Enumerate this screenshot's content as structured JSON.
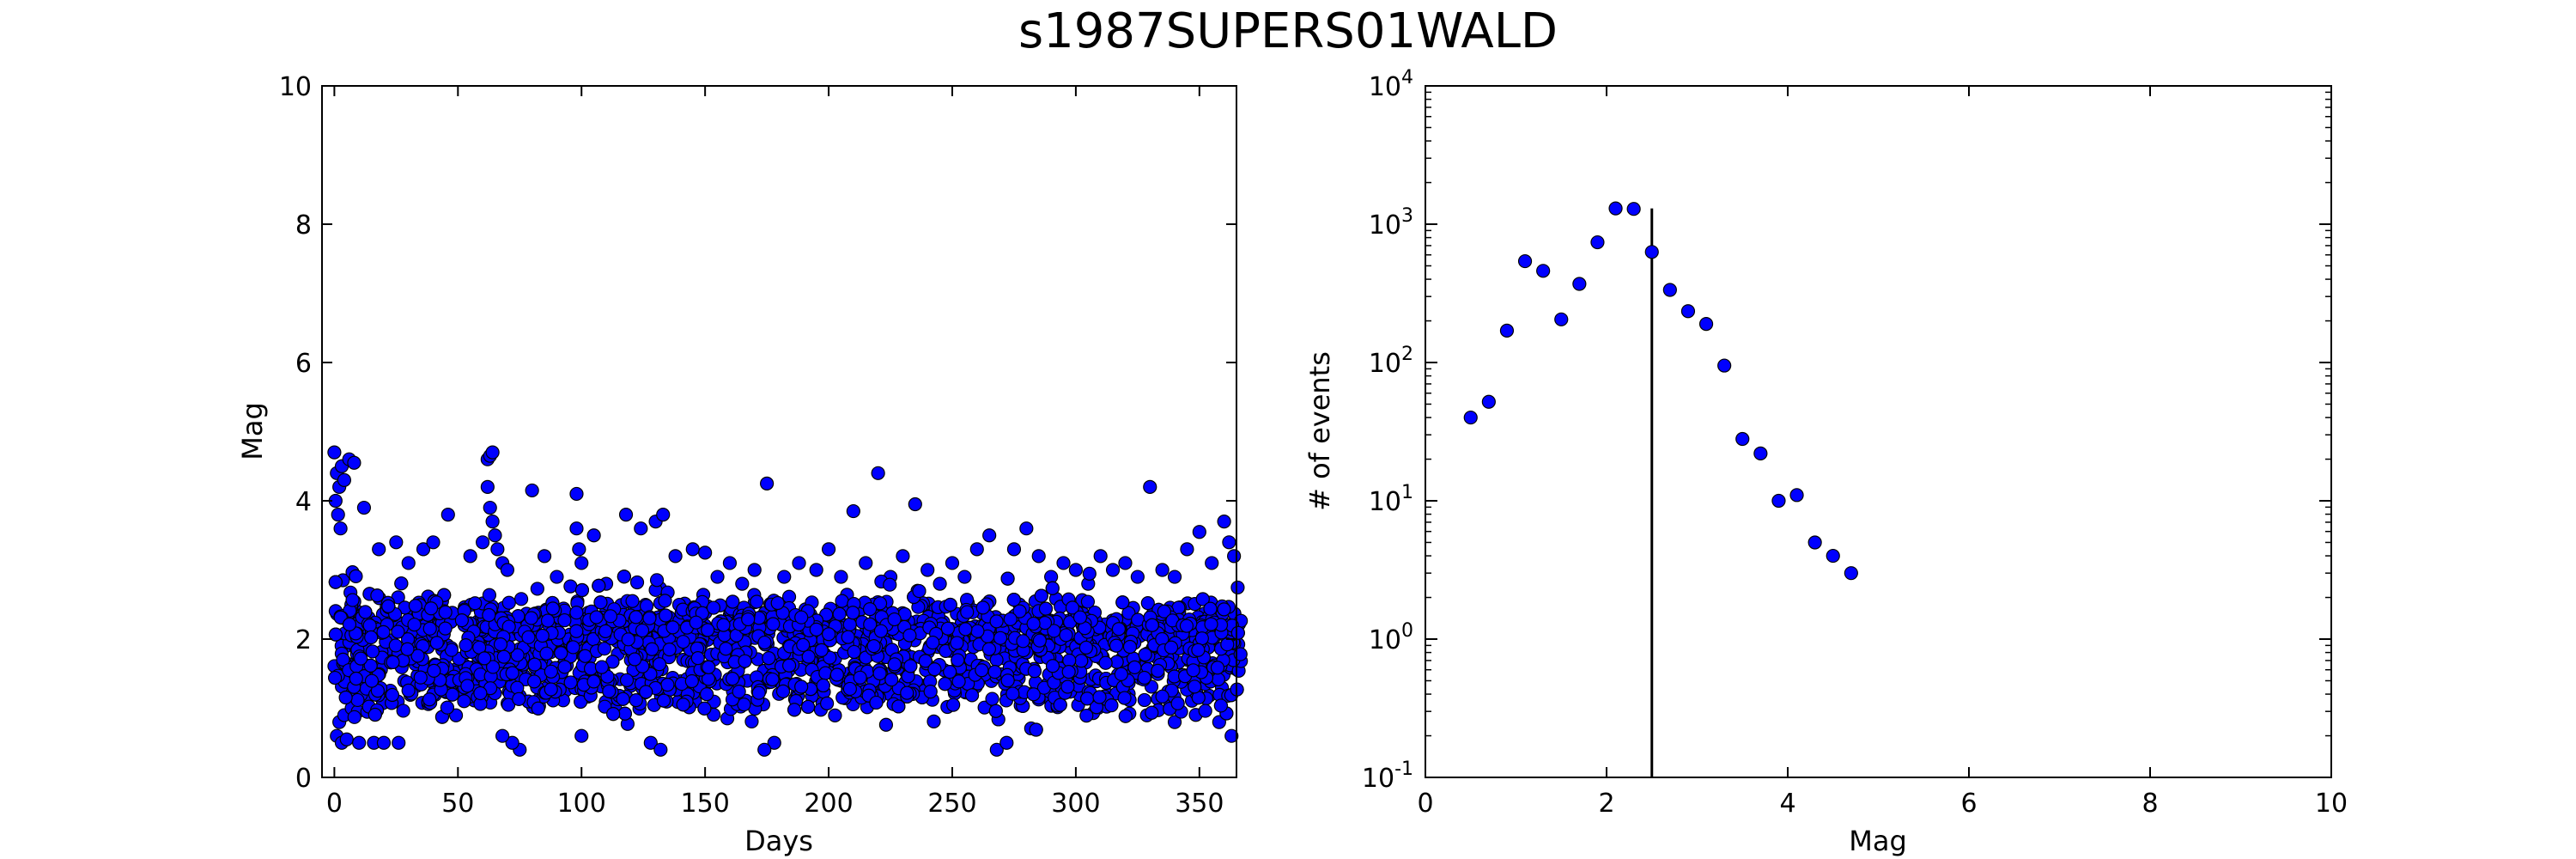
{
  "figure": {
    "title": "s1987SUPERS01WALD"
  },
  "chart_data": [
    {
      "type": "scatter",
      "xlabel": "Days",
      "ylabel": "Mag",
      "xlim": [
        -5,
        365
      ],
      "ylim": [
        0,
        10
      ],
      "xticks": [
        0,
        50,
        100,
        150,
        200,
        250,
        300,
        350
      ],
      "yticks": [
        0,
        2,
        4,
        6,
        8,
        10
      ],
      "xtick_labels": [
        "0",
        "50",
        "100",
        "150",
        "200",
        "250",
        "300",
        "350"
      ],
      "ytick_labels": [
        "0",
        "2",
        "4",
        "6",
        "8",
        "10"
      ],
      "marker_color": "#0000ff",
      "marker_edge_color": "#000000",
      "grid": false,
      "points_sample_note_free": true,
      "points": [
        [
          0,
          4.7
        ],
        [
          1,
          4.4
        ],
        [
          2,
          4.2
        ],
        [
          3,
          4.5
        ],
        [
          0.5,
          4.0
        ],
        [
          1.5,
          3.8
        ],
        [
          2.5,
          3.6
        ],
        [
          4,
          4.3
        ],
        [
          6,
          4.6
        ],
        [
          8,
          4.55
        ],
        [
          1,
          0.6
        ],
        [
          3,
          0.5
        ],
        [
          5,
          0.55
        ],
        [
          10,
          0.5
        ],
        [
          16,
          0.5
        ],
        [
          20,
          0.5
        ],
        [
          26,
          0.5
        ],
        [
          2,
          0.8
        ],
        [
          4,
          0.9
        ],
        [
          7,
          1.0
        ],
        [
          12,
          3.9
        ],
        [
          18,
          3.3
        ],
        [
          25,
          3.4
        ],
        [
          30,
          3.1
        ],
        [
          36,
          3.3
        ],
        [
          40,
          3.4
        ],
        [
          46,
          3.8
        ],
        [
          55,
          3.2
        ],
        [
          60,
          3.4
        ],
        [
          62,
          4.6
        ],
        [
          63,
          4.65
        ],
        [
          64,
          4.7
        ],
        [
          62,
          4.2
        ],
        [
          63,
          3.9
        ],
        [
          64,
          3.7
        ],
        [
          65,
          3.5
        ],
        [
          66,
          3.3
        ],
        [
          68,
          3.1
        ],
        [
          70,
          3.0
        ],
        [
          80,
          4.15
        ],
        [
          75,
          0.4
        ],
        [
          72,
          0.5
        ],
        [
          68,
          0.6
        ],
        [
          85,
          3.2
        ],
        [
          90,
          2.9
        ],
        [
          98,
          4.1
        ],
        [
          98,
          3.6
        ],
        [
          99,
          3.3
        ],
        [
          100,
          3.1
        ],
        [
          100,
          0.6
        ],
        [
          105,
          3.5
        ],
        [
          110,
          2.8
        ],
        [
          118,
          3.8
        ],
        [
          124,
          3.6
        ],
        [
          130,
          3.7
        ],
        [
          133,
          3.8
        ],
        [
          128,
          0.5
        ],
        [
          132,
          0.4
        ],
        [
          138,
          3.2
        ],
        [
          145,
          3.3
        ],
        [
          150,
          3.25
        ],
        [
          155,
          2.9
        ],
        [
          160,
          3.1
        ],
        [
          165,
          2.8
        ],
        [
          170,
          3.0
        ],
        [
          175,
          4.25
        ],
        [
          178,
          0.5
        ],
        [
          174,
          0.4
        ],
        [
          182,
          2.9
        ],
        [
          188,
          3.1
        ],
        [
          195,
          3.0
        ],
        [
          200,
          3.3
        ],
        [
          205,
          2.9
        ],
        [
          210,
          3.85
        ],
        [
          215,
          3.1
        ],
        [
          220,
          4.4
        ],
        [
          225,
          2.9
        ],
        [
          230,
          3.2
        ],
        [
          235,
          3.95
        ],
        [
          240,
          3.0
        ],
        [
          245,
          2.8
        ],
        [
          250,
          3.1
        ],
        [
          255,
          2.9
        ],
        [
          260,
          3.3
        ],
        [
          265,
          3.5
        ],
        [
          268,
          0.4
        ],
        [
          272,
          0.5
        ],
        [
          275,
          3.3
        ],
        [
          280,
          3.6
        ],
        [
          285,
          3.2
        ],
        [
          290,
          2.9
        ],
        [
          295,
          3.1
        ],
        [
          300,
          3.0
        ],
        [
          305,
          2.8
        ],
        [
          310,
          3.2
        ],
        [
          315,
          3.0
        ],
        [
          320,
          3.1
        ],
        [
          325,
          2.9
        ],
        [
          330,
          4.2
        ],
        [
          335,
          3.0
        ],
        [
          340,
          2.9
        ],
        [
          345,
          3.3
        ],
        [
          350,
          3.55
        ],
        [
          355,
          3.1
        ],
        [
          360,
          3.7
        ],
        [
          362,
          3.4
        ],
        [
          364,
          3.2
        ],
        [
          358,
          0.8
        ],
        [
          363,
          0.6
        ],
        [
          340,
          0.8
        ]
      ]
    },
    {
      "type": "scatter",
      "xlabel": "Mag",
      "ylabel": "# of events",
      "xscale": "linear",
      "yscale": "log",
      "xlim": [
        0,
        10
      ],
      "ylim": [
        0.1,
        10000
      ],
      "xticks": [
        0,
        2,
        4,
        6,
        8,
        10
      ],
      "xtick_labels": [
        "0",
        "2",
        "4",
        "6",
        "8",
        "10"
      ],
      "yticks": [
        {
          "value": 0.1,
          "base": "10",
          "exp": "-1"
        },
        {
          "value": 1,
          "base": "10",
          "exp": "0"
        },
        {
          "value": 10,
          "base": "10",
          "exp": "1"
        },
        {
          "value": 100,
          "base": "10",
          "exp": "2"
        },
        {
          "value": 1000,
          "base": "10",
          "exp": "3"
        },
        {
          "value": 10000,
          "base": "10",
          "exp": "4"
        }
      ],
      "marker_color": "#0000ff",
      "x": [
        0.5,
        0.7,
        0.9,
        1.1,
        1.3,
        1.5,
        1.7,
        1.9,
        2.1,
        2.3,
        2.5,
        2.7,
        2.9,
        3.1,
        3.3,
        3.5,
        3.7,
        3.9,
        4.1,
        4.3,
        4.5,
        4.7
      ],
      "y": [
        40,
        52,
        170,
        540,
        460,
        205,
        370,
        740,
        1300,
        1290,
        630,
        335,
        235,
        190,
        95,
        28,
        22,
        10,
        11,
        5,
        4,
        3
      ],
      "vline": {
        "x": 2.5,
        "ymin": 0.1,
        "ymax": 1300
      }
    }
  ]
}
